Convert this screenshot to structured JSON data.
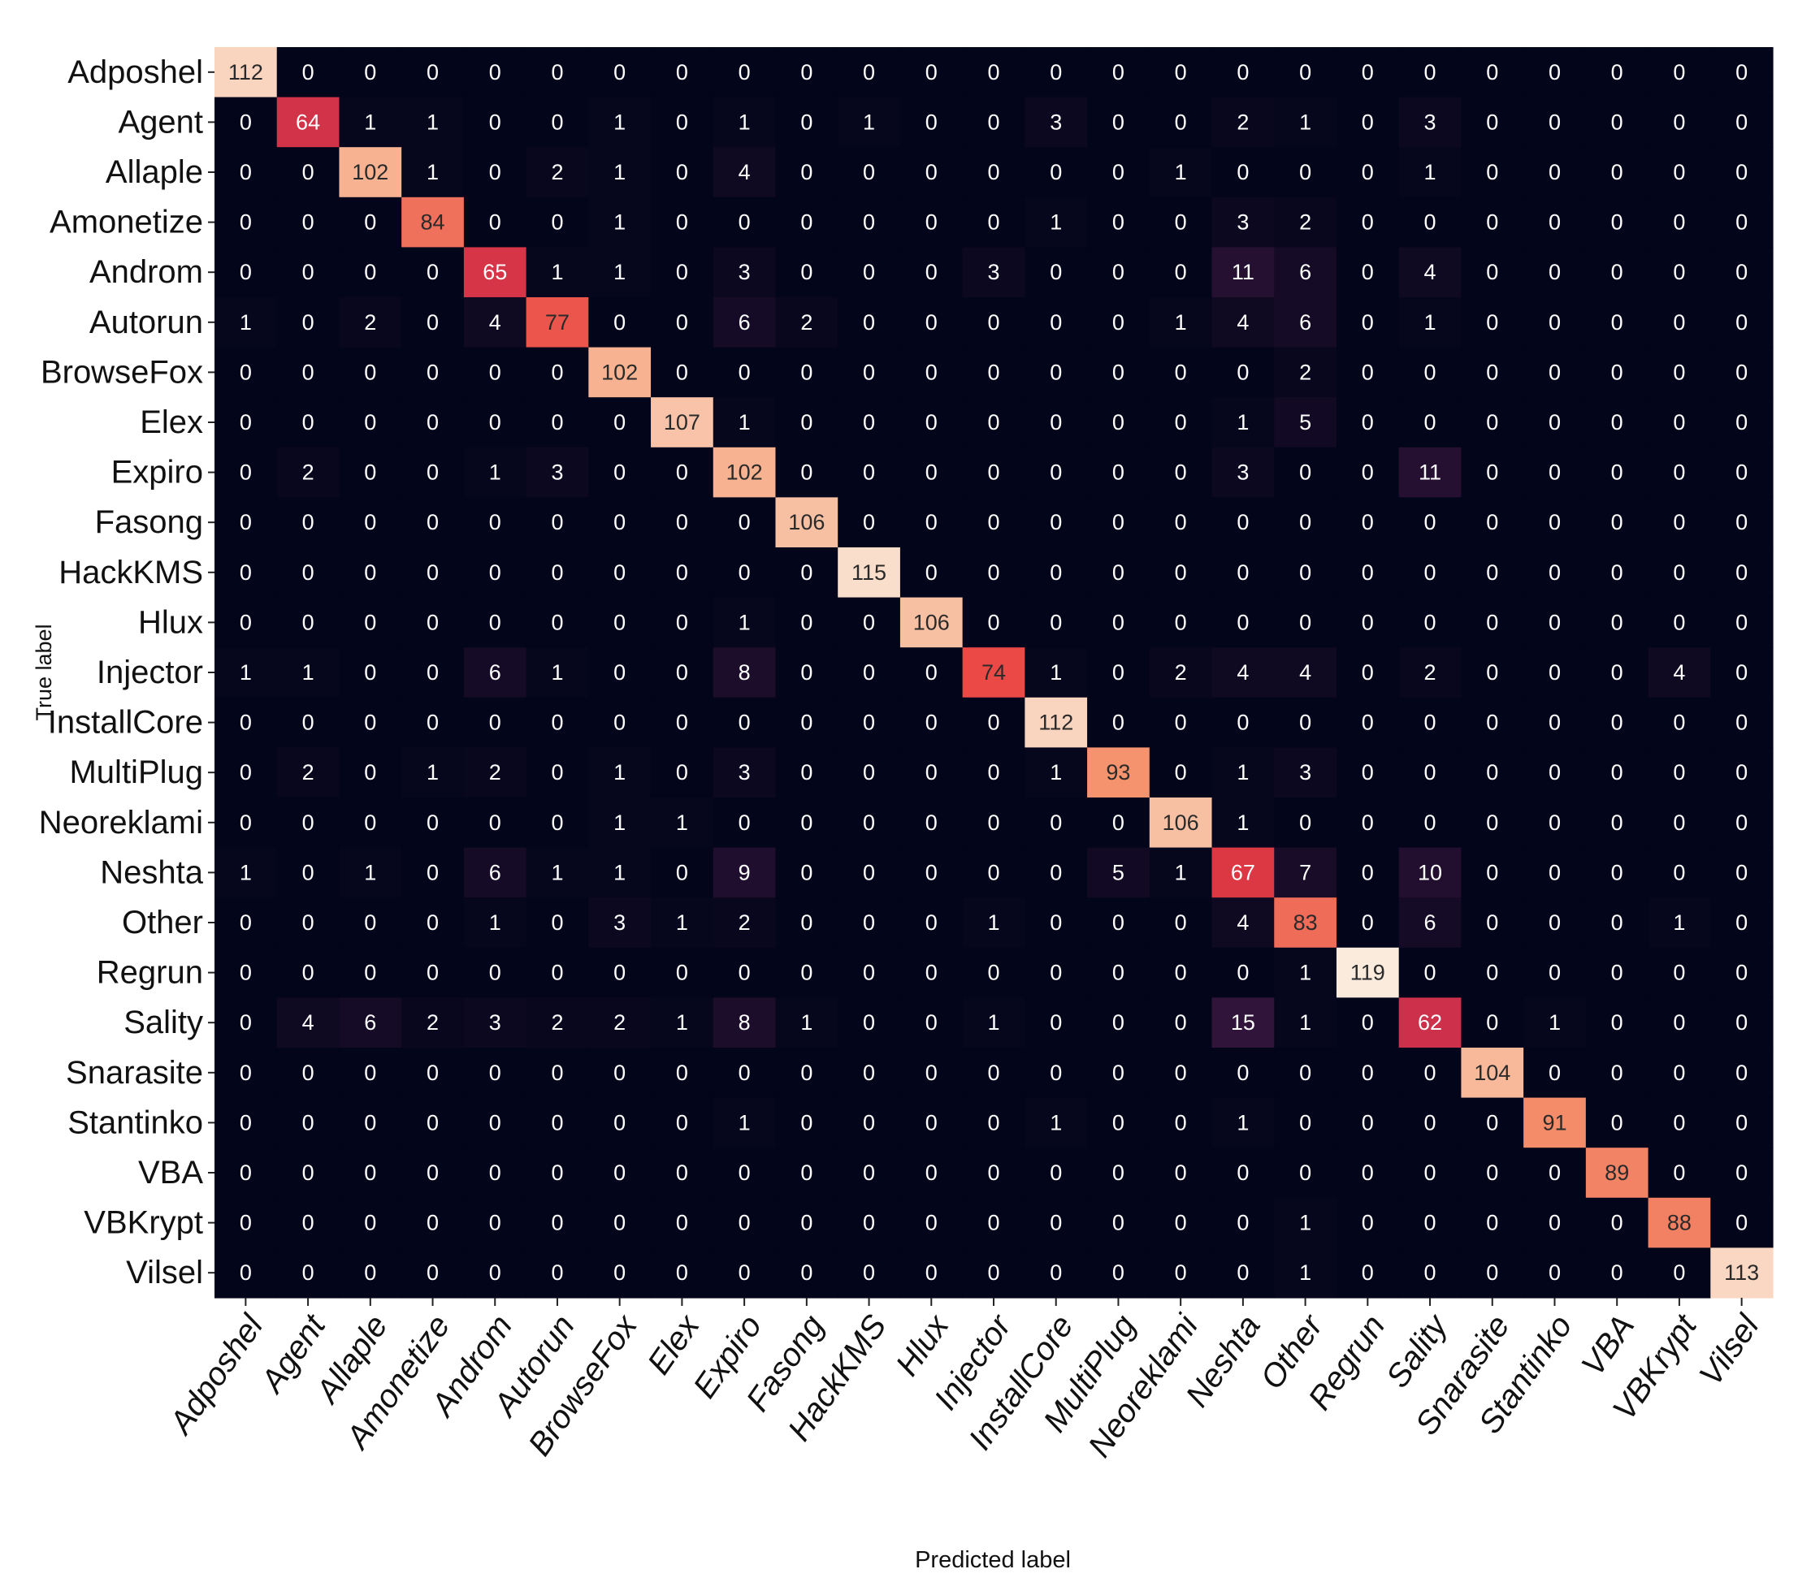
{
  "chart_data": {
    "type": "heatmap",
    "title": "",
    "xlabel": "Predicted label",
    "ylabel": "True label",
    "labels": [
      "Adposhel",
      "Agent",
      "Allaple",
      "Amonetize",
      "Androm",
      "Autorun",
      "BrowseFox",
      "Elex",
      "Expiro",
      "Fasong",
      "HackKMS",
      "Hlux",
      "Injector",
      "InstallCore",
      "MultiPlug",
      "Neoreklami",
      "Neshta",
      "Other",
      "Regrun",
      "Sality",
      "Snarasite",
      "Stantinko",
      "VBA",
      "VBKrypt",
      "Vilsel"
    ],
    "matrix": [
      [
        112,
        0,
        0,
        0,
        0,
        0,
        0,
        0,
        0,
        0,
        0,
        0,
        0,
        0,
        0,
        0,
        0,
        0,
        0,
        0,
        0,
        0,
        0,
        0,
        0
      ],
      [
        0,
        64,
        1,
        1,
        0,
        0,
        1,
        0,
        1,
        0,
        1,
        0,
        0,
        3,
        0,
        0,
        2,
        1,
        0,
        3,
        0,
        0,
        0,
        0,
        0
      ],
      [
        0,
        0,
        102,
        1,
        0,
        2,
        1,
        0,
        4,
        0,
        0,
        0,
        0,
        0,
        0,
        1,
        0,
        0,
        0,
        1,
        0,
        0,
        0,
        0,
        0
      ],
      [
        0,
        0,
        0,
        84,
        0,
        0,
        1,
        0,
        0,
        0,
        0,
        0,
        0,
        1,
        0,
        0,
        3,
        2,
        0,
        0,
        0,
        0,
        0,
        0,
        0
      ],
      [
        0,
        0,
        0,
        0,
        65,
        1,
        1,
        0,
        3,
        0,
        0,
        0,
        3,
        0,
        0,
        0,
        11,
        6,
        0,
        4,
        0,
        0,
        0,
        0,
        0
      ],
      [
        1,
        0,
        2,
        0,
        4,
        77,
        0,
        0,
        6,
        2,
        0,
        0,
        0,
        0,
        0,
        1,
        4,
        6,
        0,
        1,
        0,
        0,
        0,
        0,
        0
      ],
      [
        0,
        0,
        0,
        0,
        0,
        0,
        102,
        0,
        0,
        0,
        0,
        0,
        0,
        0,
        0,
        0,
        0,
        2,
        0,
        0,
        0,
        0,
        0,
        0,
        0
      ],
      [
        0,
        0,
        0,
        0,
        0,
        0,
        0,
        107,
        1,
        0,
        0,
        0,
        0,
        0,
        0,
        0,
        1,
        5,
        0,
        0,
        0,
        0,
        0,
        0,
        0
      ],
      [
        0,
        2,
        0,
        0,
        1,
        3,
        0,
        0,
        102,
        0,
        0,
        0,
        0,
        0,
        0,
        0,
        3,
        0,
        0,
        11,
        0,
        0,
        0,
        0,
        0
      ],
      [
        0,
        0,
        0,
        0,
        0,
        0,
        0,
        0,
        0,
        106,
        0,
        0,
        0,
        0,
        0,
        0,
        0,
        0,
        0,
        0,
        0,
        0,
        0,
        0,
        0
      ],
      [
        0,
        0,
        0,
        0,
        0,
        0,
        0,
        0,
        0,
        0,
        115,
        0,
        0,
        0,
        0,
        0,
        0,
        0,
        0,
        0,
        0,
        0,
        0,
        0,
        0
      ],
      [
        0,
        0,
        0,
        0,
        0,
        0,
        0,
        0,
        1,
        0,
        0,
        106,
        0,
        0,
        0,
        0,
        0,
        0,
        0,
        0,
        0,
        0,
        0,
        0,
        0
      ],
      [
        1,
        1,
        0,
        0,
        6,
        1,
        0,
        0,
        8,
        0,
        0,
        0,
        74,
        1,
        0,
        2,
        4,
        4,
        0,
        2,
        0,
        0,
        0,
        4,
        0
      ],
      [
        0,
        0,
        0,
        0,
        0,
        0,
        0,
        0,
        0,
        0,
        0,
        0,
        0,
        112,
        0,
        0,
        0,
        0,
        0,
        0,
        0,
        0,
        0,
        0,
        0
      ],
      [
        0,
        2,
        0,
        1,
        2,
        0,
        1,
        0,
        3,
        0,
        0,
        0,
        0,
        1,
        93,
        0,
        1,
        3,
        0,
        0,
        0,
        0,
        0,
        0,
        0
      ],
      [
        0,
        0,
        0,
        0,
        0,
        0,
        1,
        1,
        0,
        0,
        0,
        0,
        0,
        0,
        0,
        106,
        1,
        0,
        0,
        0,
        0,
        0,
        0,
        0,
        0
      ],
      [
        1,
        0,
        1,
        0,
        6,
        1,
        1,
        0,
        9,
        0,
        0,
        0,
        0,
        0,
        5,
        1,
        67,
        7,
        0,
        10,
        0,
        0,
        0,
        0,
        0
      ],
      [
        0,
        0,
        0,
        0,
        1,
        0,
        3,
        1,
        2,
        0,
        0,
        0,
        1,
        0,
        0,
        0,
        4,
        83,
        0,
        6,
        0,
        0,
        0,
        1,
        0
      ],
      [
        0,
        0,
        0,
        0,
        0,
        0,
        0,
        0,
        0,
        0,
        0,
        0,
        0,
        0,
        0,
        0,
        0,
        1,
        119,
        0,
        0,
        0,
        0,
        0,
        0
      ],
      [
        0,
        4,
        6,
        2,
        3,
        2,
        2,
        1,
        8,
        1,
        0,
        0,
        1,
        0,
        0,
        0,
        15,
        1,
        0,
        62,
        0,
        1,
        0,
        0,
        0
      ],
      [
        0,
        0,
        0,
        0,
        0,
        0,
        0,
        0,
        0,
        0,
        0,
        0,
        0,
        0,
        0,
        0,
        0,
        0,
        0,
        0,
        104,
        0,
        0,
        0,
        0
      ],
      [
        0,
        0,
        0,
        0,
        0,
        0,
        0,
        0,
        1,
        0,
        0,
        0,
        0,
        1,
        0,
        0,
        1,
        0,
        0,
        0,
        0,
        91,
        0,
        0,
        0
      ],
      [
        0,
        0,
        0,
        0,
        0,
        0,
        0,
        0,
        0,
        0,
        0,
        0,
        0,
        0,
        0,
        0,
        0,
        0,
        0,
        0,
        0,
        0,
        89,
        0,
        0
      ],
      [
        0,
        0,
        0,
        0,
        0,
        0,
        0,
        0,
        0,
        0,
        0,
        0,
        0,
        0,
        0,
        0,
        0,
        1,
        0,
        0,
        0,
        0,
        0,
        88,
        0
      ],
      [
        0,
        0,
        0,
        0,
        0,
        0,
        0,
        0,
        0,
        0,
        0,
        0,
        0,
        0,
        0,
        0,
        0,
        1,
        0,
        0,
        0,
        0,
        0,
        0,
        113
      ]
    ],
    "colormap": {
      "low": "#03051a",
      "stops": [
        "#03051a",
        "#4c1d4b",
        "#a11a5b",
        "#e83f3f",
        "#f69c73",
        "#faebdd"
      ],
      "vmin": 0,
      "vmax": 119
    },
    "grid": false,
    "colorbar": false
  }
}
